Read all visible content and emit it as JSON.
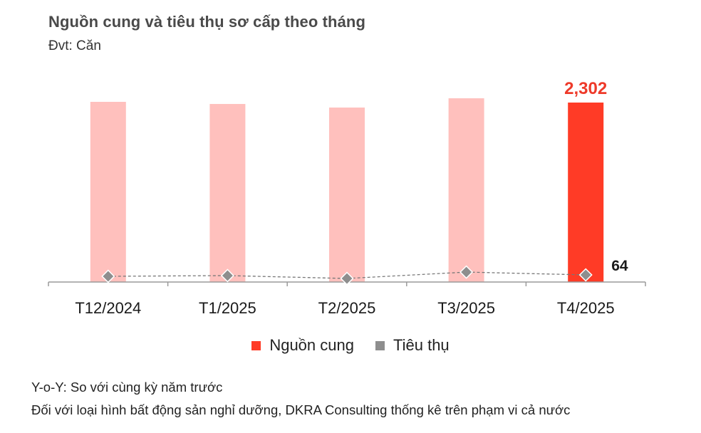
{
  "header": {
    "title": "Nguồn cung và tiêu thụ sơ cấp theo tháng",
    "unit": "Đvt: Căn"
  },
  "colors": {
    "supply_bar": "#ffc0bd",
    "supply_bar_highlight": "#ff3b26",
    "consumption_marker": "#8e8e8e",
    "axis": "#9a9a9a",
    "highlight_label": "#ee3a2a"
  },
  "legend": {
    "supply_label": "Nguồn cung",
    "consumption_label": "Tiêu thụ"
  },
  "labels": {
    "supply_last": "2,302",
    "consumption_last": "64"
  },
  "notes": {
    "yoy": "Y-o-Y: So với cùng kỳ năm trước",
    "scope": "Đối với loại hình bất động sản nghỉ dưỡng, DKRA Consulting thống kê trên phạm vi cả nước"
  },
  "chart_data": {
    "type": "bar",
    "title": "Nguồn cung và tiêu thụ sơ cấp theo tháng",
    "subtitle": "Đvt: Căn",
    "categories": [
      "T12/2024",
      "T1/2025",
      "T2/2025",
      "T3/2025",
      "T4/2025"
    ],
    "series": [
      {
        "name": "Nguồn cung",
        "type": "bar",
        "values": [
          2311,
          2284,
          2238,
          2357,
          2302
        ]
      },
      {
        "name": "Tiêu thụ",
        "type": "line",
        "values": [
          46,
          55,
          18,
          100,
          64
        ]
      }
    ],
    "annotations": [
      {
        "category": "T4/2025",
        "series": "Nguồn cung",
        "text": "2,302"
      },
      {
        "category": "T4/2025",
        "series": "Tiêu thụ",
        "text": "64"
      }
    ],
    "xlabel": "",
    "ylabel": "",
    "ylim": [
      0,
      2500
    ],
    "grid": false,
    "legend_position": "bottom"
  }
}
